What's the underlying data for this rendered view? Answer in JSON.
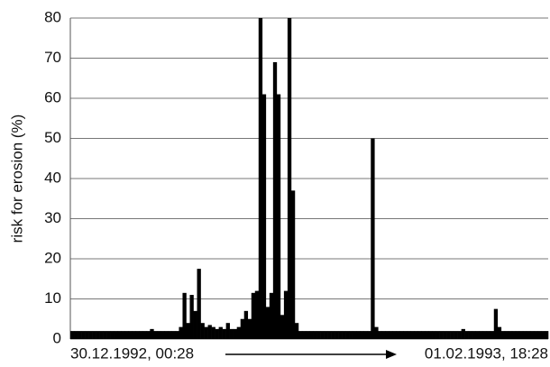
{
  "chart_data": {
    "type": "bar",
    "ylabel": "risk for erosion (%)",
    "categories": [
      "30.12.1992, 00:28",
      null,
      null,
      null,
      null,
      null,
      null,
      null,
      null,
      null,
      null,
      null,
      null,
      null,
      null,
      null,
      null,
      null,
      null,
      null,
      null,
      null,
      null,
      null,
      null,
      null,
      null,
      null,
      null,
      null,
      null,
      null,
      null,
      null,
      null,
      null,
      null,
      null,
      null,
      null,
      null,
      null,
      null,
      null,
      null,
      null,
      null,
      null,
      null,
      null,
      null,
      null,
      null,
      null,
      null,
      null,
      null,
      null,
      null,
      null,
      null,
      null,
      null,
      null,
      null,
      null,
      null,
      null,
      null,
      null,
      null,
      null,
      null,
      null,
      null,
      null,
      null,
      null,
      null,
      null,
      null,
      null,
      null,
      null,
      null,
      null,
      null,
      null,
      null,
      null,
      null,
      null,
      null,
      null,
      null,
      null,
      null,
      null,
      null,
      null,
      null,
      null,
      null,
      null,
      null,
      null,
      null,
      null,
      null,
      null,
      null,
      null,
      null,
      null,
      null,
      null,
      null,
      null,
      null,
      null,
      null,
      null,
      null,
      null,
      null,
      null,
      null,
      null,
      null,
      null,
      null,
      "01.02.1993, 18:28"
    ],
    "values": [
      2,
      2,
      2,
      2,
      2,
      2,
      2,
      2,
      2,
      2,
      2,
      2,
      2,
      2,
      2,
      2,
      2,
      2,
      2,
      2,
      2,
      2,
      2.5,
      2,
      2,
      2,
      2,
      2,
      2,
      2,
      3,
      11.5,
      4,
      11,
      7,
      17.5,
      4,
      3,
      3.5,
      3,
      2.5,
      3,
      2.5,
      4,
      2.5,
      2.5,
      3,
      5,
      7,
      5,
      11.5,
      12,
      80,
      61,
      8,
      11.5,
      69,
      61,
      6,
      12,
      80,
      37,
      4,
      2,
      2,
      2,
      2,
      2,
      2,
      2,
      2,
      2,
      2,
      2,
      2,
      2,
      2,
      2,
      2,
      2,
      2,
      2,
      2,
      50,
      3,
      2,
      2,
      2,
      2,
      2,
      2,
      2,
      2,
      2,
      2,
      2,
      2,
      2,
      2,
      2,
      2,
      2,
      2,
      2,
      2,
      2,
      2,
      2,
      2.5,
      2,
      2,
      2,
      2,
      2,
      2,
      2,
      2,
      7.5,
      3,
      2,
      2,
      2,
      2,
      2,
      2,
      2,
      2,
      2,
      2,
      2,
      2,
      2
    ],
    "color": "#000000",
    "ylim": [
      0,
      80
    ],
    "yticks": [
      0,
      10,
      20,
      30,
      40,
      50,
      60,
      70,
      80
    ],
    "grid": true
  }
}
